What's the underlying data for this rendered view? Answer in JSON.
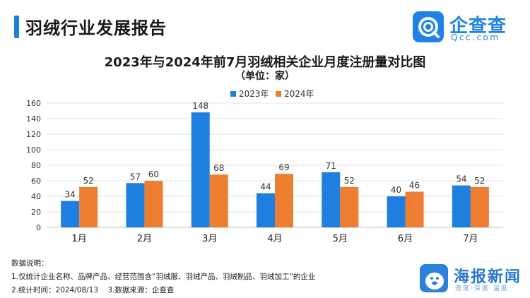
{
  "header": {
    "report_title": "羽绒行业发展报告",
    "logo_name": "企查查",
    "logo_domain": "Qcc.com"
  },
  "colors": {
    "accent": "#1f7fe0",
    "series_2023": "#1f7fe0",
    "series_2024": "#ed7d31"
  },
  "chart_data": {
    "type": "bar",
    "title": "2023年与2024年前7月羽绒相关企业月度注册量对比图",
    "subtitle": "（单位：家）",
    "categories": [
      "1月",
      "2月",
      "3月",
      "4月",
      "5月",
      "6月",
      "7月"
    ],
    "series": [
      {
        "name": "2023年",
        "color": "#1f7fe0",
        "values": [
          34,
          57,
          148,
          44,
          71,
          40,
          54
        ]
      },
      {
        "name": "2024年",
        "color": "#ed7d31",
        "values": [
          52,
          60,
          68,
          69,
          52,
          46,
          52
        ]
      }
    ],
    "ylim": [
      0,
      160
    ],
    "yticks": [
      0,
      20,
      40,
      60,
      80,
      100,
      120,
      140,
      160
    ],
    "grid": true,
    "legend_position": "top-center",
    "data_labels": true
  },
  "notes": {
    "heading": "数据说明：",
    "line1": "1.仅统计企业名称、品牌产品、经营范围含“羽绒服、羽绒产品、羽绒制品、羽绒加工”的企业",
    "line2": "2.统计时间：2024/08/13    3.数据来源：企查查"
  },
  "watermark": {
    "name": "海报新闻",
    "slogan": "速度·深度·温度"
  }
}
